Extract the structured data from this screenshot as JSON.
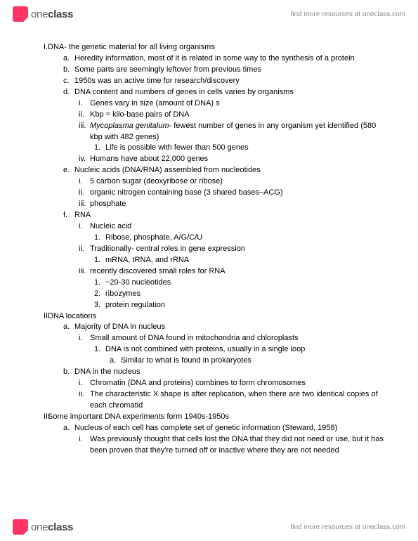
{
  "brand": {
    "part1": "one",
    "part2": "class"
  },
  "tagline": "find more resources at oneclass.com",
  "doc": {
    "I": {
      "num": "I.",
      "text": "DNA- the genetic material for all living organisms",
      "children": {
        "a": {
          "num": "a.",
          "text": "Heredity information, most of it is related in some way to the synthesis of a protein"
        },
        "b": {
          "num": "b.",
          "text": "Some parts are seemingly leftover from previous times"
        },
        "c": {
          "num": "c.",
          "text": "1950s was an active time for research/discovery"
        },
        "d": {
          "num": "d.",
          "text": "DNA content and numbers of genes in cells varies by organisms",
          "children": {
            "i": {
              "num": "i.",
              "text": "Genes vary in size (amount of DNA) s"
            },
            "ii": {
              "num": "ii.",
              "text": "Kbp = kilo-base pairs of DNA"
            },
            "iii": {
              "num": "iii.",
              "italic": "Mycoplasma genitalum",
              "text": "- fewest number of genes in any organism yet identified (580 kbp with 482 genes)",
              "children": {
                "1": {
                  "num": "1.",
                  "text": "Life is possible with fewer than 500 genes"
                }
              }
            },
            "iv": {
              "num": "iv.",
              "text": "Humans have about 22,000 genes"
            }
          }
        },
        "e": {
          "num": "e.",
          "text": "Nucleic acids (DNA/RNA) assembled from nucleotides",
          "children": {
            "i": {
              "num": "i.",
              "text": "5 carbon sugar (deoxyribose or ribose)"
            },
            "ii": {
              "num": "ii.",
              "text": "organic nitrogen containing base (3 shared bases–ACG)"
            },
            "iii": {
              "num": "iii.",
              "text": "phosphate"
            }
          }
        },
        "f": {
          "num": "f.",
          "text": "RNA",
          "children": {
            "i": {
              "num": "i.",
              "text": "Nucleic acid",
              "children": {
                "1": {
                  "num": "1.",
                  "text": "Ribose, phosphate, A/G/C/U"
                }
              }
            },
            "ii": {
              "num": "ii.",
              "text": "Traditionally- central roles in gene expression",
              "children": {
                "1": {
                  "num": "1.",
                  "text": "mRNA, tRNA, and rRNA"
                }
              }
            },
            "iii": {
              "num": "iii.",
              "text": "recently discovered small roles for RNA",
              "children": {
                "1": {
                  "num": "1.",
                  "text": "~20-30 nucleotides"
                },
                "2": {
                  "num": "2.",
                  "text": "ribozymes"
                },
                "3": {
                  "num": "3.",
                  "text": "protein regulation"
                }
              }
            }
          }
        }
      }
    },
    "II": {
      "num": "II.",
      "text": "DNA locations",
      "children": {
        "a": {
          "num": "a.",
          "text": "Majority of DNA in nucleus",
          "children": {
            "i": {
              "num": "i.",
              "text": "Small amount of DNA found in mitochondria and chloroplasts",
              "children": {
                "1": {
                  "num": "1.",
                  "text": "DNA is not combined with proteins, usually in a single loop",
                  "children": {
                    "a": {
                      "num": "a.",
                      "text": "Similar to what is found in prokaryotes"
                    }
                  }
                }
              }
            }
          }
        },
        "b": {
          "num": "b.",
          "text": "DNA in the nucleus",
          "children": {
            "i": {
              "num": "i.",
              "text": "Chromatin (DNA and proteins) combines to form chromosomes"
            },
            "ii": {
              "num": "ii.",
              "text": "The characteristic X shape is after replication, when there are two identical copies of each chromatid"
            }
          }
        }
      }
    },
    "III": {
      "num": "III.",
      "text": "Some important DNA experiments form 1940s-1950s",
      "children": {
        "a": {
          "num": "a.",
          "text": "Nucleus of each cell has complete set of genetic information (Steward, 1958)",
          "children": {
            "i": {
              "num": "i.",
              "text": "Was previously thought that cells lost the DNA that they did not need or use, but it has been proven that they're turned off or inactive where they are not needed"
            }
          }
        }
      }
    }
  }
}
